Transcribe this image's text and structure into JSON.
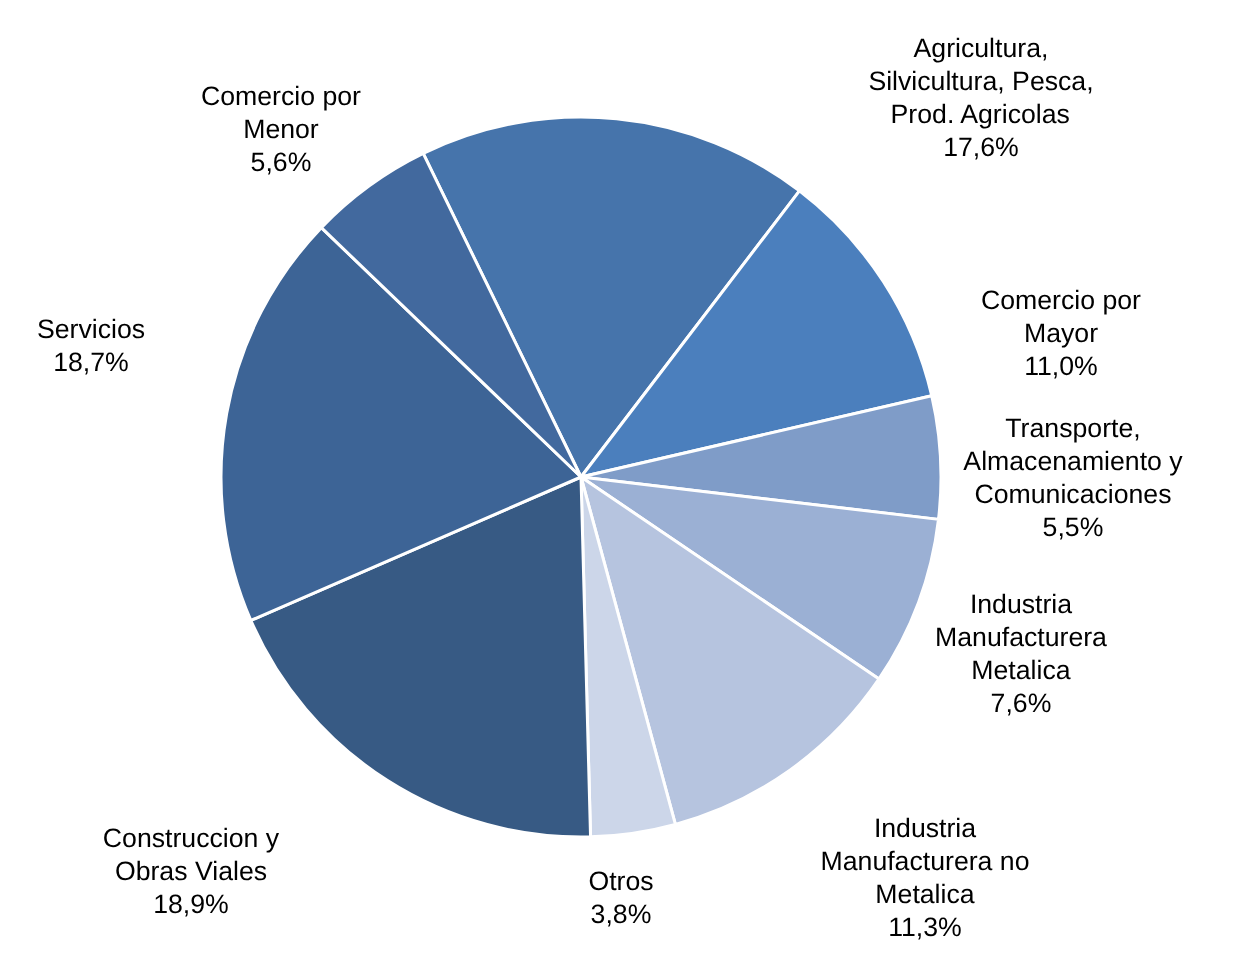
{
  "chart_data": {
    "type": "pie",
    "categories": [
      "Agricultura,\nSilvicultura, Pesca,\nProd. Agricolas",
      "Comercio por\nMayor",
      "Transporte,\nAlmacenamiento y\nComunicaciones",
      "Industria\nManufacturera\nMetalica",
      "Industria\nManufacturera no\nMetalica",
      "Otros",
      "Construccion y\nObras Viales",
      "Servicios",
      "Comercio por\nMenor"
    ],
    "values": [
      17.6,
      11.0,
      5.5,
      7.6,
      11.3,
      3.8,
      18.9,
      18.7,
      5.6
    ],
    "value_labels": [
      "17,6%",
      "11,0%",
      "5,5%",
      "7,6%",
      "11,3%",
      "3,8%",
      "18,9%",
      "18,7%",
      "5,6%"
    ],
    "colors": [
      "#4674ab",
      "#4b7fbd",
      "#7f9cc8",
      "#9bb0d4",
      "#b6c4df",
      "#ccd6e9",
      "#375a84",
      "#3d6496",
      "#42699e"
    ]
  }
}
